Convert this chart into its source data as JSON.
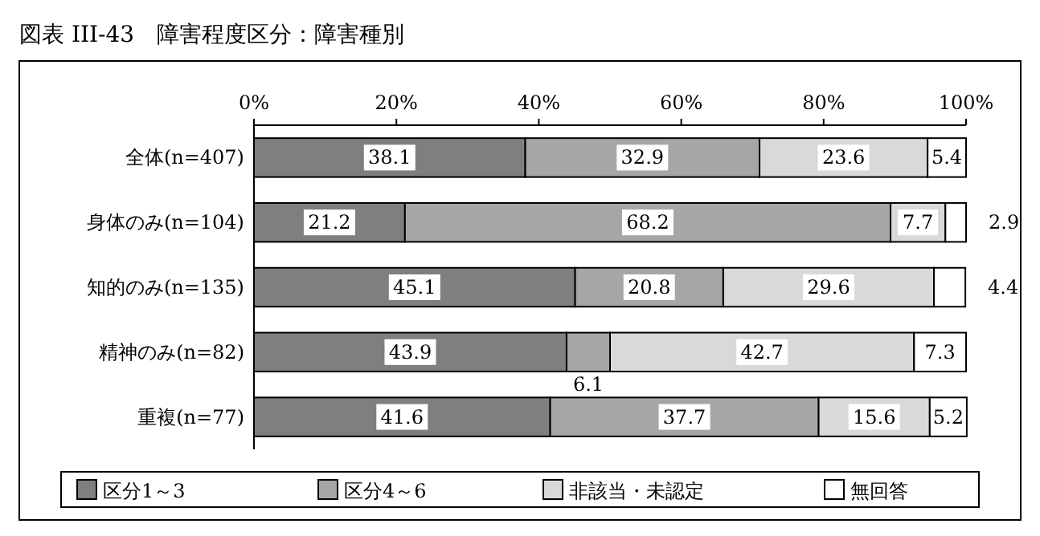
{
  "chart_data": {
    "type": "bar",
    "title": "図表 III-43　障害程度区分：障害種別",
    "orientation": "horizontal",
    "stacked": true,
    "data_labels": true,
    "legend": "bottom",
    "categories": [
      "全体(n=407)",
      "身体のみ(n=104)",
      "知的のみ(n=135)",
      "精神のみ(n=82)",
      "重複(n=77)"
    ],
    "xlim": [
      0,
      100
    ],
    "xticks": [
      {
        "value": 0,
        "label": "0%"
      },
      {
        "value": 20,
        "label": "20%"
      },
      {
        "value": 40,
        "label": "40%"
      },
      {
        "value": 60,
        "label": "60%"
      },
      {
        "value": 80,
        "label": "80%"
      },
      {
        "value": 100,
        "label": "100%"
      }
    ],
    "series": [
      {
        "name": "区分1～3",
        "color": "#7f7f7f",
        "values": [
          38.1,
          21.2,
          45.1,
          43.9,
          41.6
        ]
      },
      {
        "name": "区分4～6",
        "color": "#a6a6a6",
        "values": [
          32.9,
          68.2,
          20.8,
          6.1,
          37.7
        ]
      },
      {
        "name": "非該当・未認定",
        "color": "#d9d9d9",
        "values": [
          23.6,
          7.7,
          29.6,
          42.7,
          15.6
        ]
      },
      {
        "name": "無回答",
        "color": "#ffffff",
        "values": [
          5.4,
          2.9,
          4.4,
          7.3,
          5.2
        ]
      }
    ]
  }
}
